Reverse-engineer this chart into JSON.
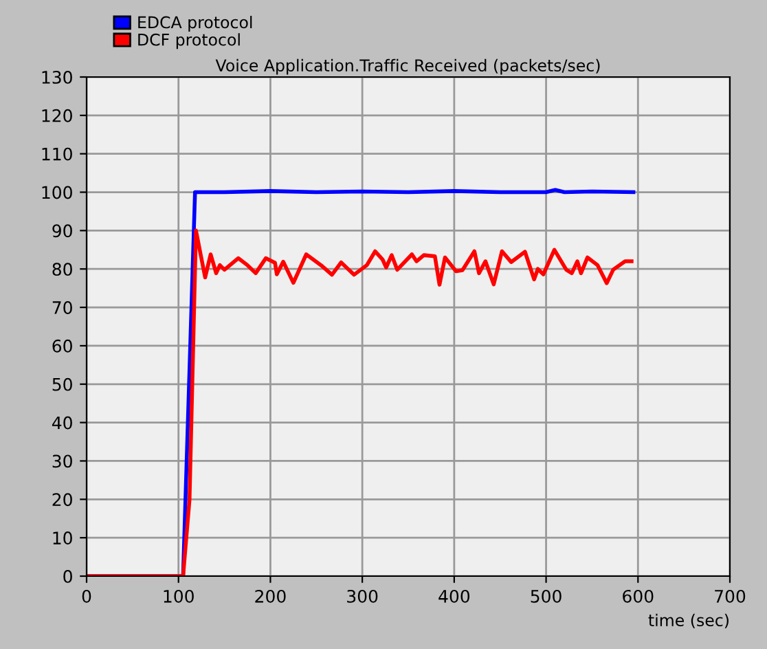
{
  "chart_data": {
    "type": "line",
    "title": "Voice Application.Traffic Received (packets/sec)",
    "xlabel": "time (sec)",
    "xlim": [
      0,
      700
    ],
    "xticks": [
      0,
      100,
      200,
      300,
      400,
      500,
      600,
      700
    ],
    "ylim": [
      0,
      130
    ],
    "yticks": [
      0,
      10,
      20,
      30,
      40,
      50,
      60,
      70,
      80,
      90,
      100,
      110,
      120,
      130
    ],
    "grid": true,
    "legend": "top left",
    "marker": "none",
    "line_style": "solid",
    "series": [
      {
        "name": "EDCA protocol",
        "color": "#0000ff",
        "x": [
          0,
          105,
          118,
          150,
          200,
          250,
          300,
          350,
          400,
          450,
          500,
          510,
          520,
          550,
          595
        ],
        "values": [
          0,
          0,
          100,
          100,
          100.3,
          100,
          100.2,
          100,
          100.3,
          100,
          100,
          100.6,
          100,
          100.2,
          100
        ]
      },
      {
        "name": "DCF protocol",
        "color": "#ff0000",
        "x": [
          0,
          105,
          112,
          119,
          129,
          135,
          141,
          145,
          150,
          165,
          175,
          184,
          195,
          205,
          207,
          214,
          225,
          239,
          255,
          267,
          277,
          291,
          305,
          314,
          322,
          326,
          332,
          338,
          354,
          359,
          367,
          379,
          384,
          390,
          402,
          409,
          422,
          427,
          434,
          443,
          452,
          462,
          477,
          487,
          491,
          497,
          509,
          522,
          528,
          534,
          538,
          545,
          556,
          566,
          573,
          586,
          593
        ],
        "values": [
          0,
          0,
          20,
          90,
          77.8,
          83.8,
          78.9,
          81,
          79.8,
          82.8,
          81,
          78.9,
          82.8,
          81.6,
          78.6,
          81.9,
          76.4,
          83.8,
          81,
          78.5,
          81.7,
          78.5,
          81,
          84.6,
          82.5,
          80.4,
          83.6,
          79.8,
          83.8,
          82,
          83.6,
          83.3,
          75.9,
          83,
          79.4,
          79.7,
          84.6,
          78.9,
          82,
          76,
          84.6,
          81.8,
          84.5,
          77.3,
          80,
          78.6,
          85,
          79.8,
          78.9,
          82,
          78.9,
          83,
          81,
          76.3,
          79.8,
          82,
          82
        ]
      }
    ]
  }
}
